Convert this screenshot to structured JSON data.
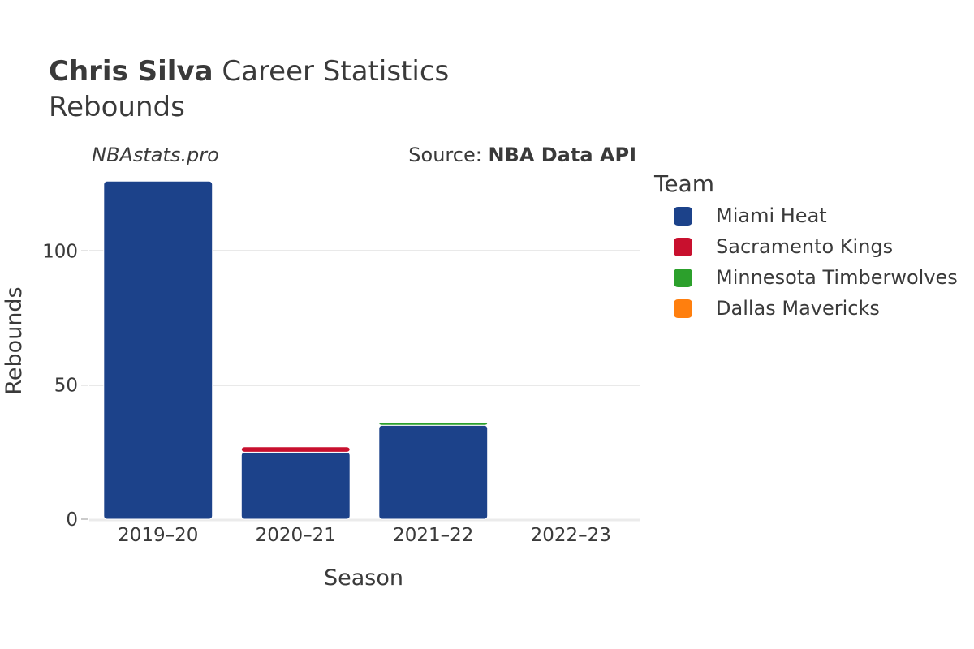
{
  "header": {
    "title_bold": "Chris Silva",
    "title_rest": "Career Statistics",
    "subtitle": "Rebounds",
    "credit": "NBAstats.pro",
    "source_prefix": "Source:",
    "source_name": "NBA Data API"
  },
  "legend": {
    "title": "Team"
  },
  "chart_data": {
    "type": "bar",
    "stacked": true,
    "categories": [
      "2019–20",
      "2020–21",
      "2021–22",
      "2022–23"
    ],
    "series": [
      {
        "name": "Miami Heat",
        "color": "#1c428a",
        "values": [
          126,
          25,
          35,
          0
        ]
      },
      {
        "name": "Sacramento Kings",
        "color": "#c8102e",
        "values": [
          0,
          2,
          0,
          0
        ]
      },
      {
        "name": "Minnesota Timberwolves",
        "color": "#2ca02c",
        "values": [
          0,
          0,
          1,
          0
        ]
      },
      {
        "name": "Dallas Mavericks",
        "color": "#ff7f0e",
        "values": [
          0,
          0,
          0,
          0
        ]
      }
    ],
    "xlabel": "Season",
    "ylabel": "Rebounds",
    "ylim": [
      0,
      127
    ],
    "yticks": [
      0,
      50,
      100
    ],
    "grid": true,
    "legend_position": "right"
  }
}
